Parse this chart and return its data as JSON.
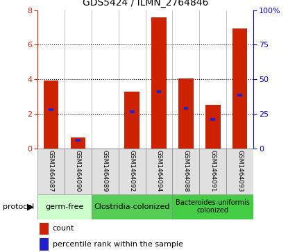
{
  "title": "GDS5424 / ILMN_2764846",
  "samples": [
    "GSM1464087",
    "GSM1464090",
    "GSM1464089",
    "GSM1464092",
    "GSM1464094",
    "GSM1464088",
    "GSM1464091",
    "GSM1464093"
  ],
  "counts": [
    3.95,
    0.65,
    0.0,
    3.3,
    7.6,
    4.05,
    2.55,
    6.95
  ],
  "percentile_ranks": [
    28.0,
    6.0,
    0.0,
    26.5,
    41.0,
    29.0,
    21.0,
    38.5
  ],
  "ylim_left": [
    0,
    8
  ],
  "ylim_right": [
    0,
    100
  ],
  "yticks_left": [
    0,
    2,
    4,
    6,
    8
  ],
  "yticks_right": [
    0,
    25,
    50,
    75,
    100
  ],
  "ytick_labels_right": [
    "0",
    "25",
    "50",
    "75",
    "100%"
  ],
  "bar_color": "#cc2200",
  "percentile_color": "#2222cc",
  "grid_color": "#000000",
  "bg_color": "#ffffff",
  "protocol_groups": [
    {
      "label": "germ-free",
      "start": 0,
      "end": 2,
      "color": "#ccffcc"
    },
    {
      "label": "Clostridia-colonized",
      "start": 2,
      "end": 5,
      "color": "#55cc55"
    },
    {
      "label": "Bacteroides-uniformis\ncolonized",
      "start": 5,
      "end": 8,
      "color": "#44cc44"
    }
  ],
  "bar_color_left": "#cc2200",
  "right_tick_color": "#0000cc",
  "left_tick_color": "#cc2200",
  "bar_width": 0.55,
  "protocol_label": "protocol",
  "legend_count_label": "count",
  "legend_percentile_label": "percentile rank within the sample"
}
